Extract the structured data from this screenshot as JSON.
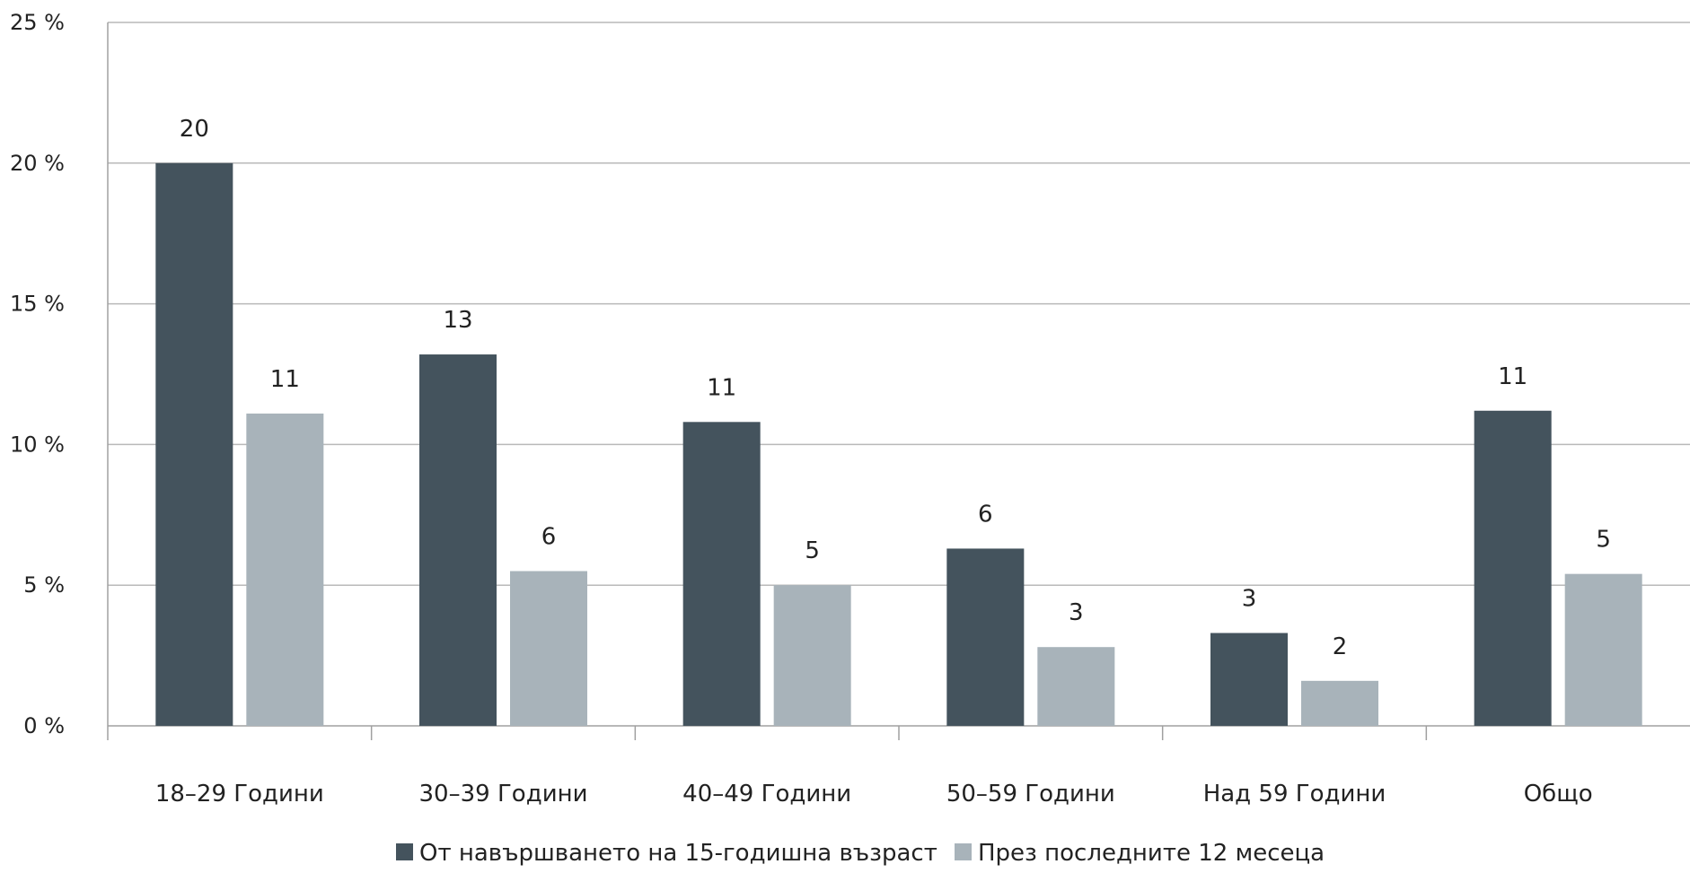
{
  "chart_data": {
    "type": "bar",
    "categories": [
      "18–29 Години",
      "30–39 Години",
      "40–49 Години",
      "50–59 Години",
      "Над 59 Години",
      "Общо"
    ],
    "series": [
      {
        "name": "От навършването на 15-годишна възраст",
        "values": [
          20,
          13.2,
          10.8,
          6.3,
          3.3,
          11.2
        ],
        "labels": [
          "20",
          "13",
          "11",
          "6",
          "3",
          "11"
        ],
        "color": "#44535d"
      },
      {
        "name": "През последните 12 месеца",
        "values": [
          11.1,
          5.5,
          5.0,
          2.8,
          1.6,
          5.4
        ],
        "labels": [
          "11",
          "6",
          "5",
          "3",
          "2",
          "5"
        ],
        "color": "#a8b3ba"
      }
    ],
    "yticks": [
      "0 %",
      "5 %",
      "10 %",
      "15 %",
      "20 %",
      "25 %"
    ],
    "ylim": [
      0,
      25
    ],
    "grid": true,
    "legend_position": "bottom"
  }
}
